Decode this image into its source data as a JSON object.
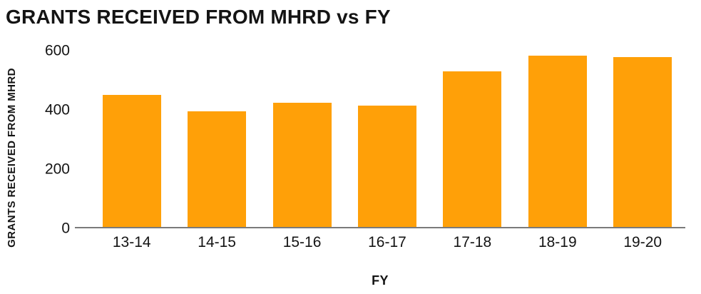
{
  "chart": {
    "title": "GRANTS RECEIVED FROM MHRD vs FY",
    "y_axis_title": "GRANTS RECEIVED FROM MHRD",
    "x_axis_title": "FY"
  },
  "chart_data": {
    "type": "bar",
    "title": "GRANTS RECEIVED FROM MHRD vs FY",
    "xlabel": "FY",
    "ylabel": "GRANTS RECEIVED FROM MHRD",
    "categories": [
      "13-14",
      "14-15",
      "15-16",
      "16-17",
      "17-18",
      "18-19",
      "19-20"
    ],
    "values": [
      450,
      393,
      423,
      412,
      529,
      584,
      578
    ],
    "y_ticks": [
      0,
      200,
      400,
      600
    ],
    "ylim": [
      0,
      600
    ],
    "grid": false,
    "legend": false,
    "bar_color": "#FFA008",
    "axis_line_color": "#7a7a7a",
    "text_color": "#141414"
  }
}
